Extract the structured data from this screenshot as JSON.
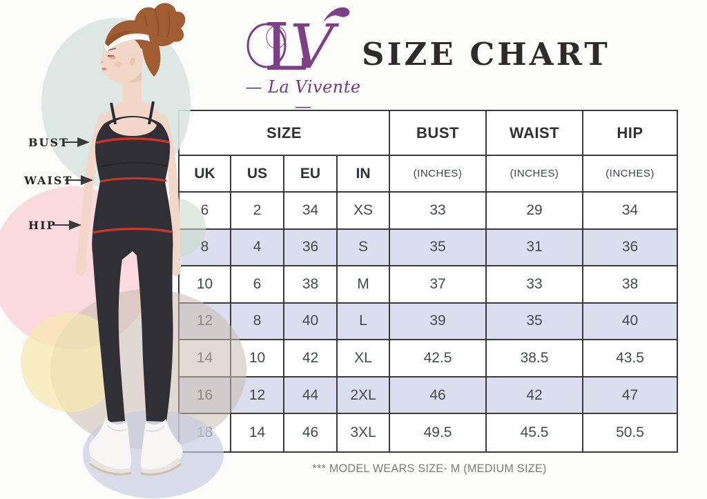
{
  "brand": {
    "monogram_l": "L",
    "monogram_v": "V",
    "name_display": "— La Vivente —"
  },
  "title": "SIZE CHART",
  "measure_labels": {
    "bust": "BUST",
    "waist": "WAIST",
    "hip": "HIP"
  },
  "footer_note": "*** MODEL WEARS SIZE- M (MEDIUM SIZE)",
  "chart_data": {
    "type": "table",
    "title": "SIZE CHART",
    "column_groups": [
      {
        "label": "SIZE",
        "span": 4
      },
      {
        "label": "BUST",
        "span": 1
      },
      {
        "label": "WAIST",
        "span": 1
      },
      {
        "label": "HIP",
        "span": 1
      }
    ],
    "sub_headers": [
      "UK",
      "US",
      "EU",
      "IN",
      "(INCHES)",
      "(INCHES)",
      "(INCHES)"
    ],
    "rows": [
      [
        "6",
        "2",
        "34",
        "XS",
        "33",
        "29",
        "34"
      ],
      [
        "8",
        "4",
        "36",
        "S",
        "35",
        "31",
        "36"
      ],
      [
        "10",
        "6",
        "38",
        "M",
        "37",
        "33",
        "38"
      ],
      [
        "12",
        "8",
        "40",
        "L",
        "39",
        "35",
        "40"
      ],
      [
        "14",
        "10",
        "42",
        "XL",
        "42.5",
        "38.5",
        "43.5"
      ],
      [
        "16",
        "12",
        "44",
        "2XL",
        "46",
        "42",
        "47"
      ],
      [
        "18",
        "14",
        "46",
        "3XL",
        "49.5",
        "45.5",
        "50.5"
      ]
    ],
    "layout": {
      "striped_row_indexes": [
        1,
        3,
        5
      ],
      "stripe_color": "#dbdeee",
      "border_color": "#3a3a3a",
      "header_bg": "#ffffff"
    },
    "annotations": [
      "BUST",
      "WAIST",
      "HIP"
    ]
  },
  "colors": {
    "brand_purple": "#7d3f86",
    "title_ink": "#2f2b2c",
    "measure_line_red": "#c93527",
    "outfit_black": "#302f36",
    "stripe_lavender": "#dbdeee",
    "blob_teal": "#d9e4e1",
    "blob_pink": "#f8cfd6",
    "blob_beige": "#c9bbae",
    "blob_yellow": "#f6e8b0",
    "blob_lavender": "#c5cbe1"
  }
}
